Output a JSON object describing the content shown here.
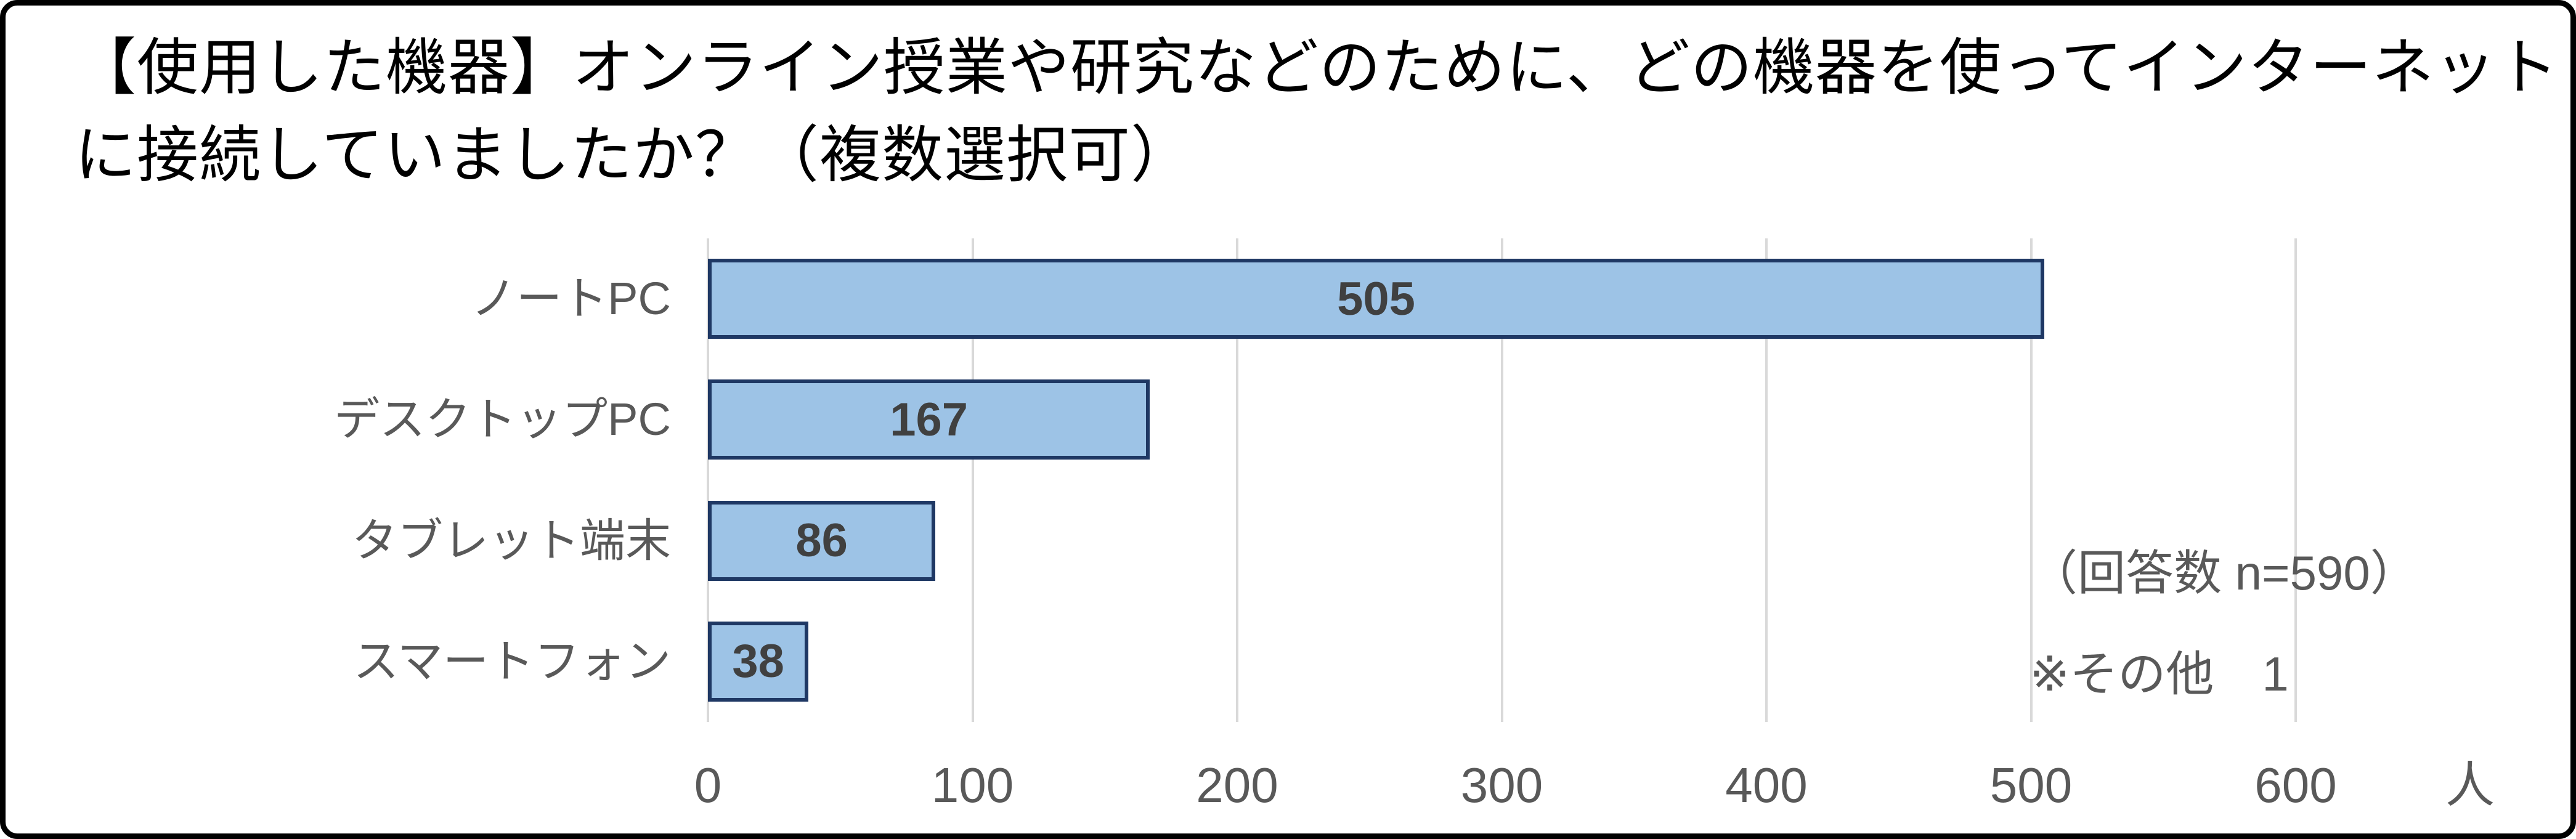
{
  "chart_data": {
    "type": "bar",
    "orientation": "horizontal",
    "title": "【使用した機器】オンライン授業や研究などのために、どの機器を使ってインターネットに接続していましたか？（複数選択可）",
    "title_lines": [
      "【使用した機器】オンライン授業や研究などのために、どの機器を使ってインターネット",
      "に接続していましたか？（複数選択可）"
    ],
    "categories": [
      "ノートPC",
      "デスクトップPC",
      "タブレット端末",
      "スマートフォン"
    ],
    "values": [
      505,
      167,
      86,
      38
    ],
    "x_ticks": [
      0,
      100,
      200,
      300,
      400,
      500,
      600
    ],
    "x_unit": "人",
    "xlim": [
      0,
      660
    ],
    "grid": true,
    "legend": "none",
    "annotations": [
      "（回答数 n=590）",
      "※その他　1"
    ],
    "colors": {
      "bar_fill": "#9DC3E6",
      "bar_border": "#1F3864",
      "gridline": "#D9D9D9",
      "axis_text": "#595959",
      "data_label_text": "#404040",
      "title_text": "#000000",
      "frame_border": "#000000",
      "background": "#FFFFFF"
    }
  }
}
